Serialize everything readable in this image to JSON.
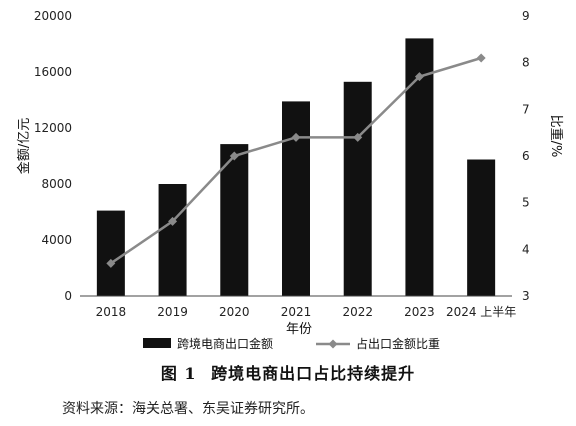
{
  "figure": {
    "number": "图 1",
    "title": "跨境电商出口占比持续提升",
    "source": "资料来源：海关总署、东吴证券研究所。"
  },
  "chart_data": {
    "type": "bar",
    "categories": [
      "2018",
      "2019",
      "2020",
      "2021",
      "2022",
      "2023",
      "2024 上半年"
    ],
    "series": [
      {
        "name": "跨境电商出口金额",
        "type": "bar",
        "axis": "left",
        "color": "#111111",
        "values": [
          6100,
          8000,
          10850,
          13900,
          15300,
          18400,
          9750
        ]
      },
      {
        "name": "占出口金额比重",
        "type": "line",
        "axis": "right",
        "color": "#8a8a8a",
        "values": [
          3.7,
          4.6,
          6.0,
          6.4,
          6.4,
          7.7,
          8.1
        ]
      }
    ],
    "xlabel": "年份",
    "ylabel_left": "金额/亿元",
    "ylabel_right": "比重/%",
    "ylim_left": [
      0,
      20000
    ],
    "yticks_left": [
      0,
      4000,
      8000,
      12000,
      16000,
      20000
    ],
    "ylim_right": [
      3,
      9
    ],
    "yticks_right": [
      3,
      4,
      5,
      6,
      7,
      8,
      9
    ],
    "grid": false,
    "legend_position": "bottom"
  }
}
